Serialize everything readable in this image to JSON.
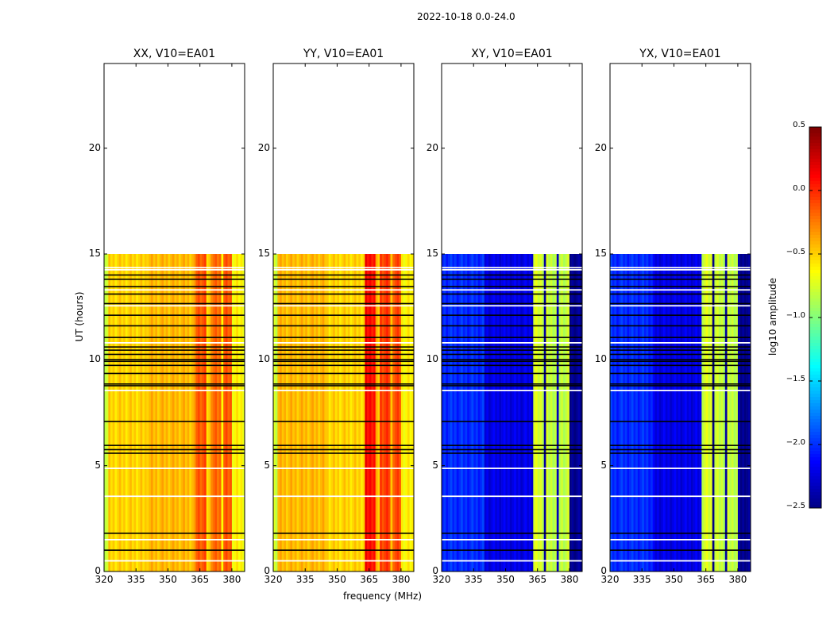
{
  "chart_data": {
    "type": "heatmap",
    "suptitle": "2022-10-18 0.0-24.0",
    "xlabel": "frequency (MHz)",
    "ylabel": "UT (hours)",
    "xlim": [
      320,
      386
    ],
    "ylim": [
      0,
      24
    ],
    "xticks": [
      "320",
      "335",
      "350",
      "365",
      "380"
    ],
    "yticks": [
      "0",
      "5",
      "10",
      "15",
      "20"
    ],
    "data_hours": [
      0,
      15
    ],
    "colorbar": {
      "label": "log10 amplitude",
      "range": [
        -2.5,
        0.5
      ],
      "ticks": [
        "0.5",
        "0.0",
        "−0.5",
        "−1.0",
        "−1.5",
        "−2.0",
        "−2.5"
      ],
      "colormap": "jet"
    },
    "flagged_hours_black": [
      1.0,
      1.8,
      5.58,
      5.75,
      5.95,
      7.08,
      8.77,
      8.85,
      9.35,
      9.73,
      9.92,
      10.0,
      10.25,
      10.45,
      10.6,
      11.05,
      11.6,
      12.1,
      12.65,
      13.1,
      13.45,
      13.8,
      14.0
    ],
    "flagged_hours_white": [
      0.5,
      1.5,
      3.55,
      4.87,
      8.55,
      10.8,
      12.55,
      13.3,
      14.25,
      14.35
    ],
    "panels": [
      {
        "title": "XX, V10=EA01",
        "profile": [
          [
            320,
            322,
            -0.75
          ],
          [
            322,
            340,
            -0.5
          ],
          [
            340,
            363,
            -0.42
          ],
          [
            363,
            368,
            -0.12
          ],
          [
            368,
            370,
            -0.5
          ],
          [
            370,
            375,
            -0.2
          ],
          [
            375,
            376,
            -0.55
          ],
          [
            376,
            380,
            -0.15
          ],
          [
            380,
            386,
            -0.6
          ]
        ]
      },
      {
        "title": "YY, V10=EA01",
        "profile": [
          [
            320,
            322,
            -0.75
          ],
          [
            322,
            345,
            -0.42
          ],
          [
            345,
            363,
            -0.5
          ],
          [
            363,
            368,
            0.1
          ],
          [
            368,
            370,
            -0.45
          ],
          [
            370,
            375,
            -0.05
          ],
          [
            375,
            376,
            -0.5
          ],
          [
            376,
            380,
            -0.1
          ],
          [
            380,
            386,
            -0.6
          ]
        ]
      },
      {
        "title": "XY, V10=EA01",
        "profile": [
          [
            320,
            340,
            -2.0
          ],
          [
            340,
            363,
            -2.2
          ],
          [
            363,
            368,
            -0.75
          ],
          [
            368,
            369,
            -2.4
          ],
          [
            369,
            374,
            -0.8
          ],
          [
            374,
            375,
            -2.4
          ],
          [
            375,
            380,
            -0.8
          ],
          [
            380,
            386,
            -2.45
          ]
        ]
      },
      {
        "title": "YX, V10=EA01",
        "profile": [
          [
            320,
            340,
            -2.0
          ],
          [
            340,
            363,
            -2.2
          ],
          [
            363,
            368,
            -0.75
          ],
          [
            368,
            369,
            -2.4
          ],
          [
            369,
            374,
            -0.8
          ],
          [
            374,
            375,
            -2.4
          ],
          [
            375,
            380,
            -0.8
          ],
          [
            380,
            386,
            -2.45
          ]
        ]
      }
    ]
  }
}
